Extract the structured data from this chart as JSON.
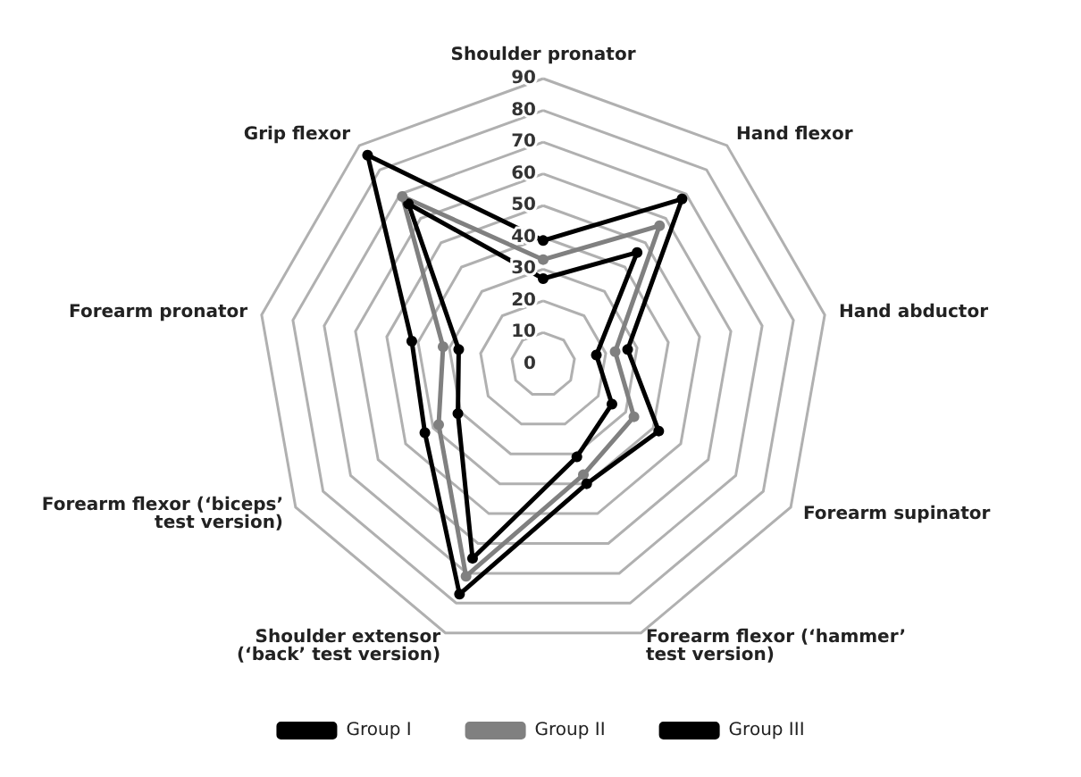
{
  "chart_data": {
    "type": "radar",
    "categories": [
      "Shoulder pronator",
      "Hand flexor",
      "Hand abductor",
      "Forearm supinator",
      "Forearm flexor (‘hammer’ test version)",
      "Shoulder extensor (‘back’ test version)",
      "Forearm flexor (‘biceps’ test version)",
      "Forearm pronator",
      "Grip flexor"
    ],
    "ylim": [
      0,
      90
    ],
    "yticks": [
      0,
      10,
      20,
      30,
      40,
      50,
      60,
      70,
      80,
      90
    ],
    "legend": "bottom",
    "marker": "circle",
    "line_style": "solid",
    "series": [
      {
        "name": "Group I",
        "color": "#000000",
        "values": [
          27,
          46,
          17,
          25,
          31,
          65,
          31,
          27,
          66
        ]
      },
      {
        "name": "Group II",
        "color": "#808080",
        "values": [
          33,
          57,
          23,
          33,
          37,
          71,
          38,
          32,
          69
        ]
      },
      {
        "name": "Group III",
        "color": "#000000",
        "values": [
          39,
          68,
          27,
          42,
          40,
          77,
          43,
          42,
          86
        ]
      }
    ]
  }
}
